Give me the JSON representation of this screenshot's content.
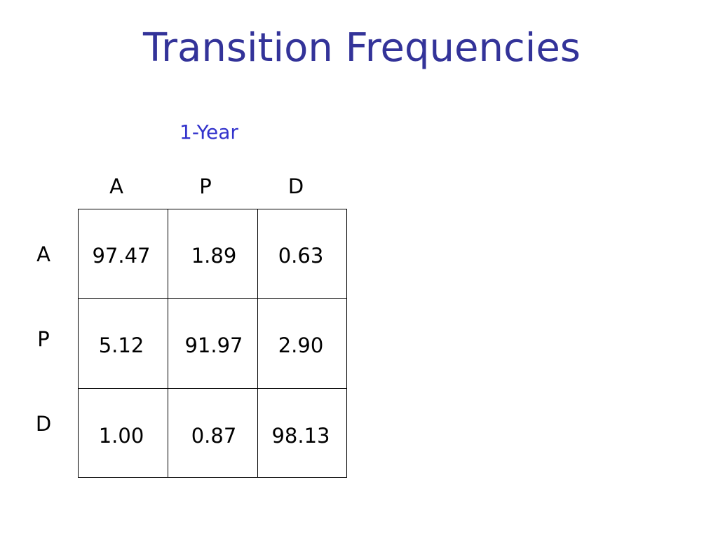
{
  "title": "Transition Frequencies",
  "subtitle": "1-Year",
  "table": {
    "columns": [
      "A",
      "P",
      "D"
    ],
    "row_labels": [
      "A",
      "P",
      "D"
    ],
    "rows": [
      [
        "97.47",
        "1.89",
        "0.63"
      ],
      [
        "5.12",
        "91.97",
        "2.90"
      ],
      [
        "1.00",
        "0.87",
        "98.13"
      ]
    ]
  }
}
